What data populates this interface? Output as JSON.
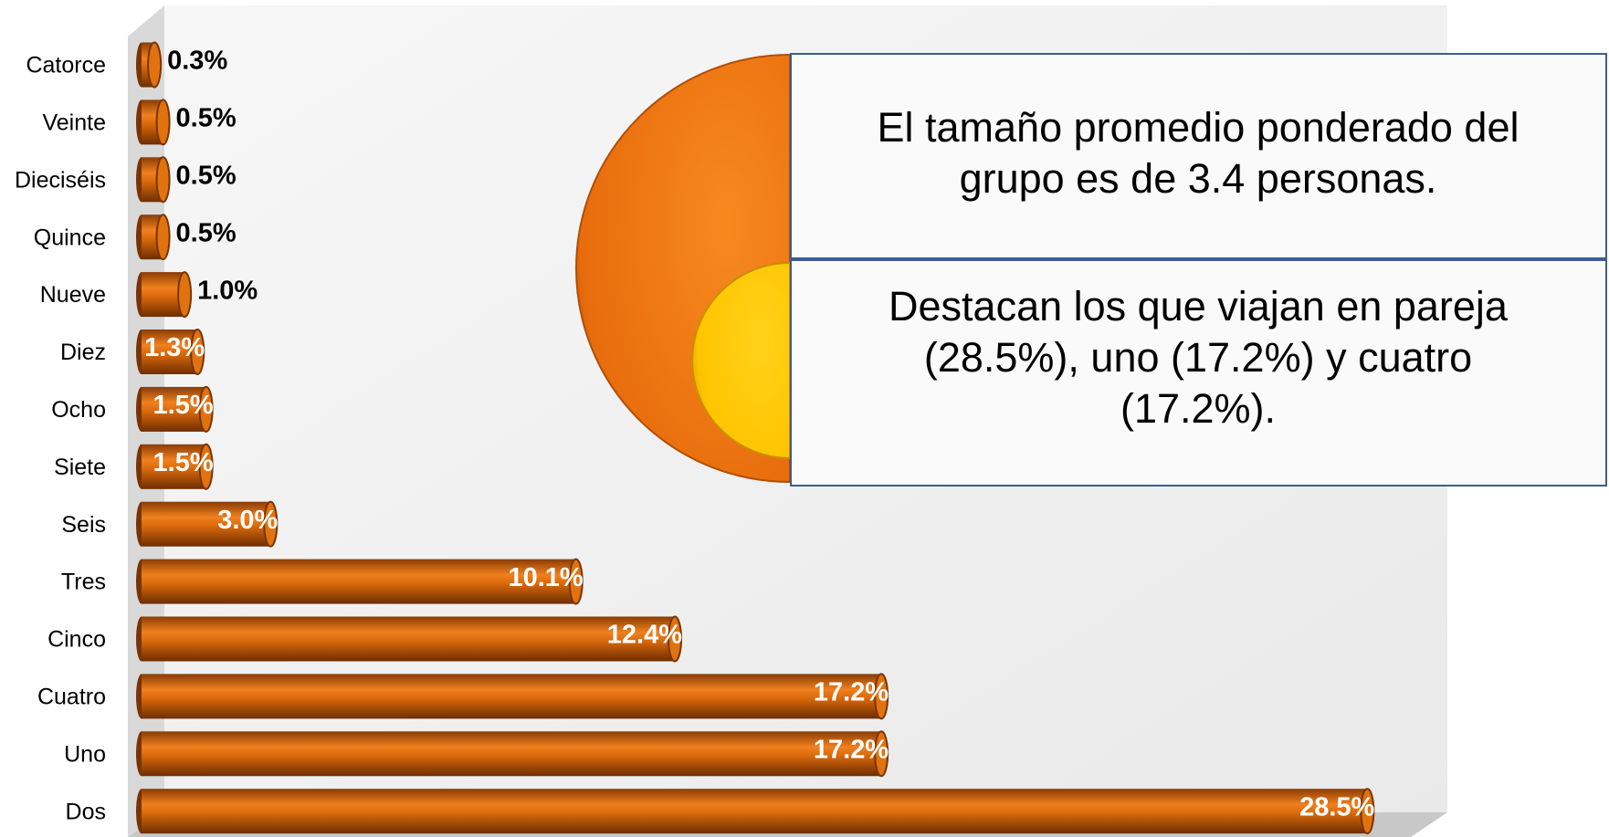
{
  "chart_data": {
    "type": "bar",
    "orientation": "horizontal",
    "categories": [
      "Catorce",
      "Veinte",
      "Dieciséis",
      "Quince",
      "Nueve",
      "Diez",
      "Ocho",
      "Siete",
      "Seis",
      "Tres",
      "Cinco",
      "Cuatro",
      "Uno",
      "Dos"
    ],
    "values": [
      0.3,
      0.5,
      0.5,
      0.5,
      1.0,
      1.3,
      1.5,
      1.5,
      3.0,
      10.1,
      12.4,
      17.2,
      17.2,
      28.5
    ],
    "value_labels": [
      "0.3%",
      "0.5%",
      "0.5%",
      "0.5%",
      "1.0%",
      "1.3%",
      "1.5%",
      "1.5%",
      "3.0%",
      "10.1%",
      "12.4%",
      "17.2%",
      "17.2%",
      "28.5%"
    ],
    "color": "#e0730f",
    "annotations": [
      [
        "El tamaño promedio ponderado del",
        "grupo es de 3.4 personas."
      ],
      [
        "Destacan los que viajan en pareja",
        "(28.5%), uno  (17.2%) y cuatro",
        "(17.2%)."
      ]
    ]
  }
}
